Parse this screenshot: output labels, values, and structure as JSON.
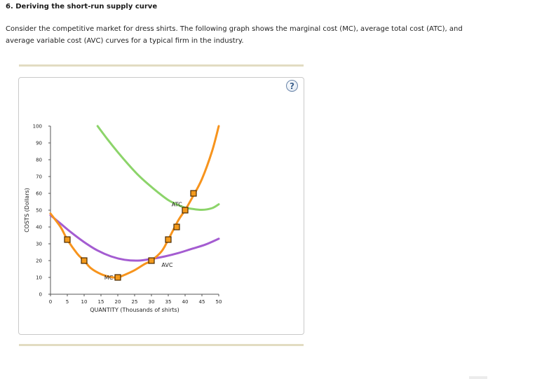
{
  "question": {
    "title": "6. Deriving the short-run supply curve",
    "intro": "Consider the competitive market for dress shirts. The following graph shows the marginal cost (MC), average total cost (ATC), and average variable cost (AVC) curves for a typical firm in the industry."
  },
  "help_button": {
    "label": "?",
    "icon": "question-mark-icon"
  },
  "colors": {
    "mc": "#f7941d",
    "atc": "#8cd46a",
    "avc": "#a45cd1",
    "marker_fill": "#f39a1c",
    "marker_stroke": "#4a2a00"
  },
  "chart_data": {
    "type": "line",
    "xlabel": "QUANTITY (Thousands of shirts)",
    "ylabel": "COSTS (Dollars)",
    "xlim": [
      0,
      50
    ],
    "ylim": [
      0,
      100
    ],
    "xticks": [
      0,
      5,
      10,
      15,
      20,
      25,
      30,
      35,
      40,
      45,
      50
    ],
    "yticks": [
      0,
      10,
      20,
      30,
      40,
      50,
      60,
      70,
      80,
      90,
      100
    ],
    "grid": false,
    "series": [
      {
        "name": "MC",
        "color": "#f7941d",
        "x": [
          0,
          3,
          5,
          8,
          10,
          12,
          15,
          18,
          20,
          22,
          25,
          28,
          30,
          33,
          35,
          38,
          40,
          42,
          45,
          48,
          50
        ],
        "y": [
          48,
          40,
          32.5,
          24,
          20,
          15.5,
          12,
          10.2,
          10,
          11.5,
          14.3,
          18,
          20,
          25.5,
          32.5,
          44,
          50,
          57,
          68.5,
          85,
          100
        ]
      },
      {
        "name": "ATC",
        "color": "#8cd46a",
        "x": [
          14,
          17,
          20,
          23,
          26,
          29,
          32,
          35,
          38,
          40,
          42,
          45,
          48,
          50
        ],
        "y": [
          100,
          92,
          84.5,
          77.5,
          71,
          65.5,
          60.5,
          56,
          53,
          51.5,
          50.8,
          50.2,
          51.2,
          53.5
        ]
      },
      {
        "name": "AVC",
        "color": "#a45cd1",
        "x": [
          0,
          3,
          6,
          10,
          14,
          18,
          22,
          26,
          30,
          34,
          38,
          42,
          46,
          50
        ],
        "y": [
          47,
          42,
          37,
          31,
          26,
          22.5,
          20.5,
          20,
          21,
          22.5,
          24.5,
          27,
          29.5,
          33
        ]
      }
    ],
    "points": [
      {
        "x": 5,
        "y": 32.5
      },
      {
        "x": 10,
        "y": 20
      },
      {
        "x": 20,
        "y": 10
      },
      {
        "x": 30,
        "y": 20
      },
      {
        "x": 35,
        "y": 32.5
      },
      {
        "x": 37.5,
        "y": 40
      },
      {
        "x": 40,
        "y": 50
      },
      {
        "x": 42.5,
        "y": 60
      }
    ],
    "annotations": [
      {
        "text": "MC",
        "x": 16,
        "y": 10
      },
      {
        "text": "ATC",
        "x": 36,
        "y": 53.5
      },
      {
        "text": "AVC",
        "x": 33,
        "y": 17.5
      }
    ]
  }
}
